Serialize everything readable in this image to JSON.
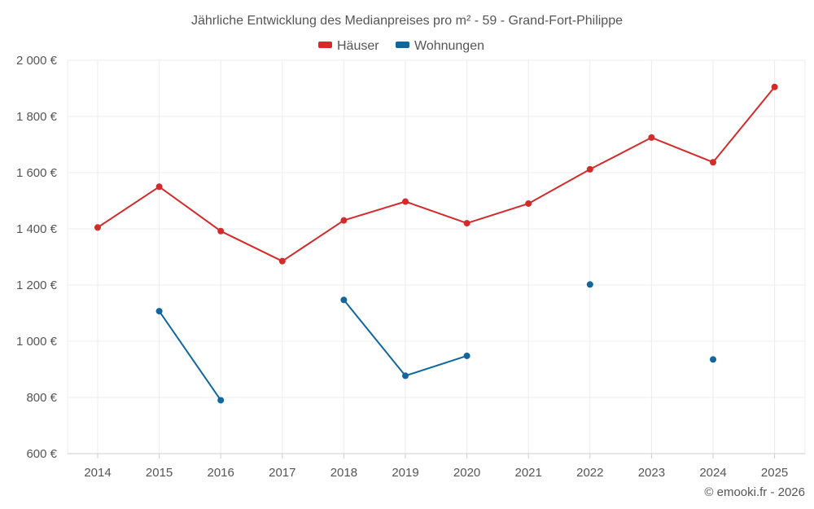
{
  "chart_data": {
    "type": "line",
    "title": "Jährliche Entwicklung des Medianpreises pro m² - 59 - Grand-Fort-Philippe",
    "xlabel": "",
    "ylabel": "",
    "x": [
      "2014",
      "2015",
      "2016",
      "2017",
      "2018",
      "2019",
      "2020",
      "2021",
      "2022",
      "2023",
      "2024",
      "2025"
    ],
    "ylim": [
      600,
      2000
    ],
    "yticks": [
      600,
      800,
      1000,
      1200,
      1400,
      1600,
      1800,
      2000
    ],
    "ytick_labels": [
      "600 €",
      "800 €",
      "1 000 €",
      "1 200 €",
      "1 400 €",
      "1 600 €",
      "1 800 €",
      "2 000 €"
    ],
    "grid": true,
    "legend_position": "top-center",
    "series": [
      {
        "name": "Häuser",
        "color": "#d32a2a",
        "values": [
          1405,
          1550,
          1392,
          1285,
          1430,
          1497,
          1420,
          1490,
          1612,
          1725,
          1637,
          1905
        ]
      },
      {
        "name": "Wohnungen",
        "color": "#0f679e",
        "values": [
          null,
          1107,
          790,
          null,
          1147,
          877,
          948,
          null,
          1202,
          null,
          935,
          null
        ]
      }
    ],
    "credit": "© emooki.fr - 2026"
  }
}
